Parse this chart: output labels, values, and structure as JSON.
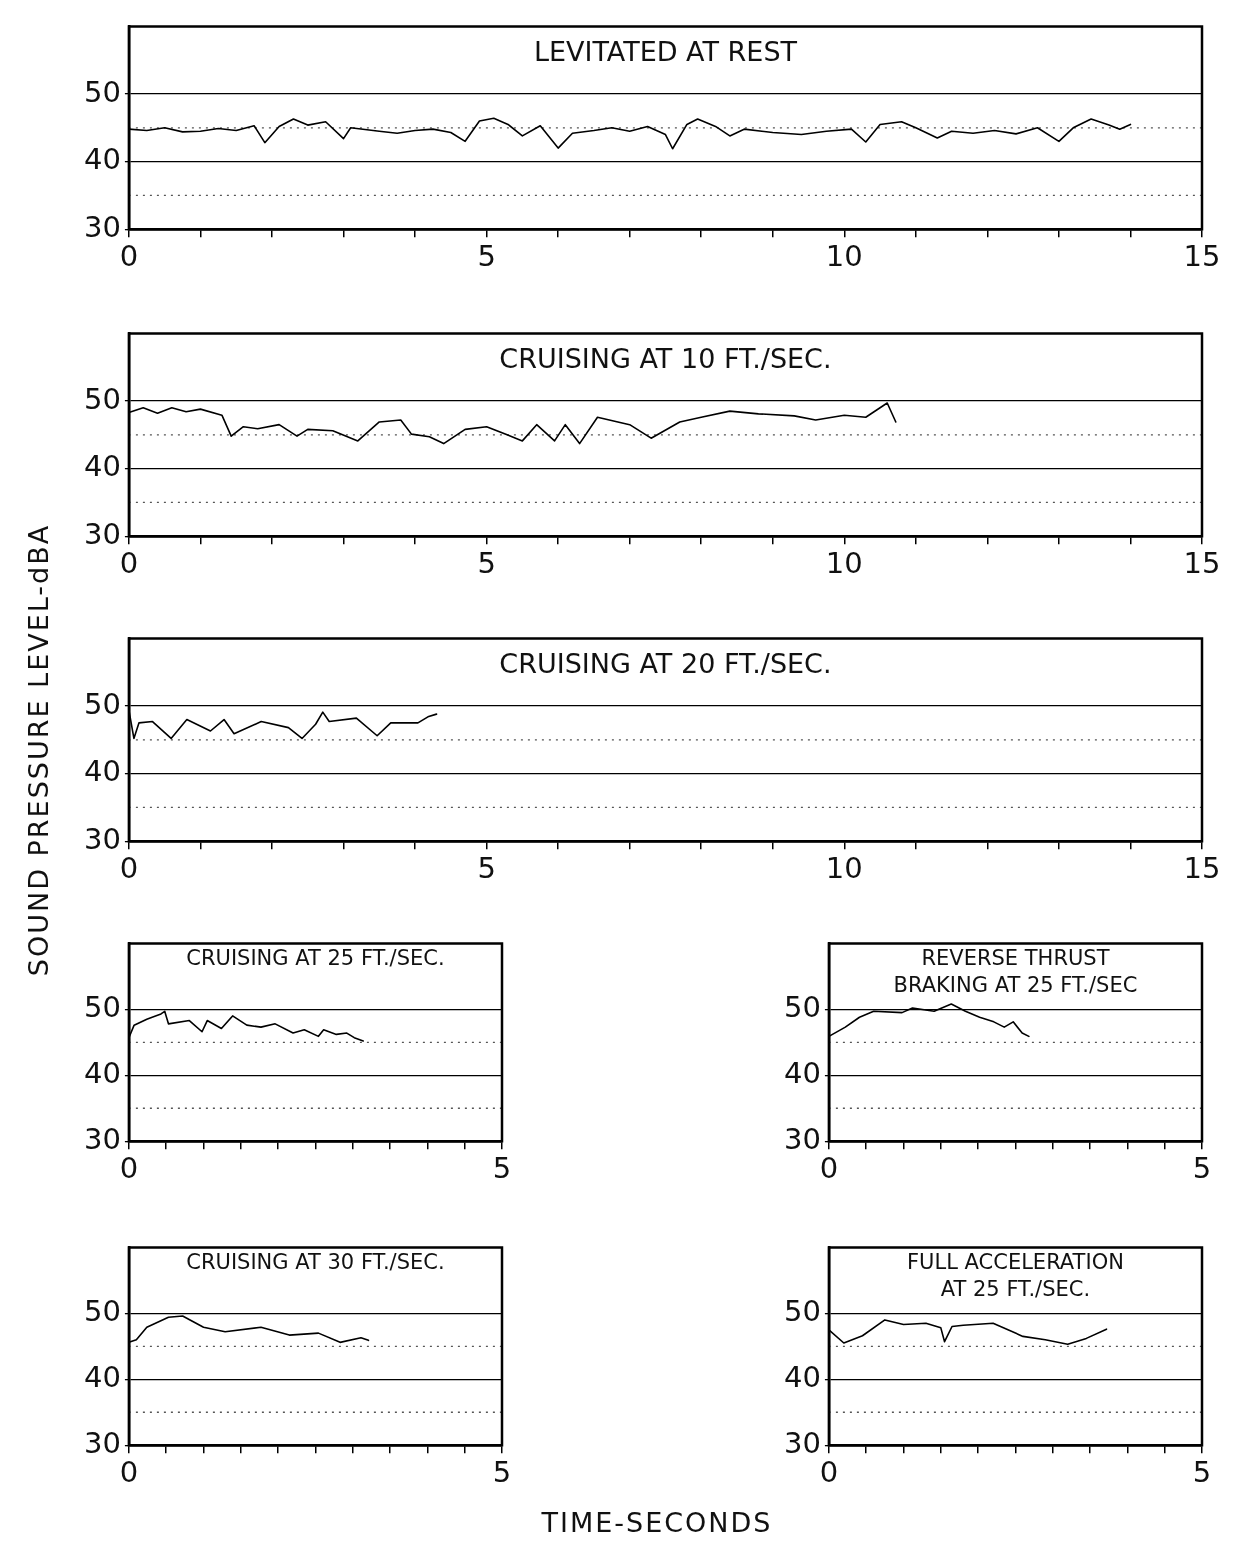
{
  "chart_data": [
    {
      "type": "line",
      "title": "LEVITATED AT REST",
      "color": "#000000",
      "x": [
        0,
        0.25,
        0.5,
        0.75,
        1.0,
        1.25,
        1.5,
        1.75,
        1.9,
        2.1,
        2.3,
        2.5,
        2.75,
        3.0,
        3.1,
        3.5,
        3.75,
        4.0,
        4.25,
        4.5,
        4.7,
        4.9,
        5.1,
        5.3,
        5.5,
        5.75,
        6.0,
        6.2,
        6.5,
        6.75,
        7.0,
        7.25,
        7.5,
        7.6,
        7.8,
        7.95,
        8.2,
        8.4,
        8.6,
        9.0,
        9.4,
        9.75,
        10.1,
        10.3,
        10.5,
        10.8,
        11.0,
        11.3,
        11.5,
        11.8,
        12.1,
        12.4,
        12.7,
        13.0,
        13.2,
        13.45,
        13.7,
        13.85,
        14.0
      ],
      "values": [
        44.8,
        44.6,
        45.0,
        44.4,
        44.5,
        44.9,
        44.6,
        45.3,
        42.8,
        45.2,
        46.3,
        45.4,
        45.9,
        43.4,
        45.0,
        44.5,
        44.2,
        44.6,
        44.8,
        44.3,
        43.0,
        46.0,
        46.4,
        45.5,
        43.8,
        45.3,
        42.0,
        44.2,
        44.6,
        45.0,
        44.5,
        45.2,
        44.0,
        41.9,
        45.5,
        46.3,
        45.2,
        43.8,
        44.8,
        44.3,
        44.0,
        44.5,
        44.8,
        42.9,
        45.5,
        45.9,
        45.0,
        43.5,
        44.5,
        44.2,
        44.6,
        44.1,
        45.0,
        43.0,
        45.0,
        46.3,
        45.4,
        44.8,
        45.5
      ],
      "xlim": [
        0,
        15
      ],
      "xticks": [
        0,
        {
          "value": 1,
          "label": null
        },
        {
          "value": 2,
          "label": null
        },
        {
          "value": 3,
          "label": null
        },
        {
          "value": 4,
          "label": null
        },
        5,
        {
          "value": 6,
          "label": null
        },
        {
          "value": 7,
          "label": null
        },
        {
          "value": 8,
          "label": null
        },
        {
          "value": 9,
          "label": null
        },
        10,
        {
          "value": 11,
          "label": null
        },
        {
          "value": 12,
          "label": null
        },
        {
          "value": 13,
          "label": null
        },
        {
          "value": 14,
          "label": null
        },
        15
      ],
      "ylim": [
        30,
        60
      ],
      "yticks": [
        30,
        40,
        50
      ],
      "grid": "y",
      "ref_lines": [
        {
          "axis": "y",
          "value": 35,
          "line_style": "dotted",
          "color": "#555555"
        },
        {
          "axis": "y",
          "value": 45,
          "line_style": "dotted",
          "color": "#555555"
        }
      ]
    },
    {
      "type": "line",
      "title": "CRUISING AT 10 FT./SEC.",
      "color": "#000000",
      "x": [
        0,
        0.2,
        0.4,
        0.6,
        0.8,
        1.0,
        1.3,
        1.43,
        1.6,
        1.8,
        2.1,
        2.35,
        2.5,
        2.85,
        3.2,
        3.5,
        3.8,
        3.95,
        4.2,
        4.4,
        4.7,
        5.0,
        5.5,
        5.7,
        5.95,
        6.1,
        6.3,
        6.55,
        7.0,
        7.3,
        7.7,
        8.0,
        8.4,
        8.8,
        9.3,
        9.6,
        10.0,
        10.3,
        10.6,
        10.72
      ],
      "values": [
        48.3,
        49.0,
        48.2,
        49.0,
        48.4,
        48.8,
        47.9,
        44.8,
        46.2,
        45.9,
        46.5,
        44.8,
        45.8,
        45.6,
        44.1,
        46.9,
        47.2,
        45.1,
        44.7,
        43.7,
        45.8,
        46.2,
        44.1,
        46.5,
        44.1,
        46.5,
        43.7,
        47.6,
        46.5,
        44.5,
        46.9,
        47.6,
        48.5,
        48.1,
        47.8,
        47.2,
        47.9,
        47.6,
        49.7,
        46.9
      ],
      "xlim": [
        0,
        15
      ],
      "xticks": [
        0,
        {
          "value": 1,
          "label": null
        },
        {
          "value": 2,
          "label": null
        },
        {
          "value": 3,
          "label": null
        },
        {
          "value": 4,
          "label": null
        },
        5,
        {
          "value": 6,
          "label": null
        },
        {
          "value": 7,
          "label": null
        },
        {
          "value": 8,
          "label": null
        },
        {
          "value": 9,
          "label": null
        },
        10,
        {
          "value": 11,
          "label": null
        },
        {
          "value": 12,
          "label": null
        },
        {
          "value": 13,
          "label": null
        },
        {
          "value": 14,
          "label": null
        },
        15
      ],
      "ylim": [
        30,
        60
      ],
      "yticks": [
        30,
        40,
        50
      ],
      "grid": "y",
      "ref_lines": [
        {
          "axis": "y",
          "value": 35,
          "line_style": "dotted",
          "color": "#555555"
        },
        {
          "axis": "y",
          "value": 45,
          "line_style": "dotted",
          "color": "#555555"
        }
      ]
    },
    {
      "type": "line",
      "title": "CRUISING AT 20 FT./SEC.",
      "ylabel": "SOUND PRESSURE LEVEL-dBA",
      "color": "#000000",
      "x": [
        0,
        0.07,
        0.14,
        0.33,
        0.59,
        0.81,
        1.14,
        1.33,
        1.47,
        1.85,
        2.23,
        2.42,
        2.61,
        2.71,
        2.8,
        3.18,
        3.47,
        3.66,
        4.04,
        4.18,
        4.3
      ],
      "values": [
        49.4,
        45.2,
        47.5,
        47.7,
        45.2,
        48.0,
        46.3,
        48.0,
        45.9,
        47.7,
        46.8,
        45.2,
        47.3,
        49.1,
        47.7,
        48.2,
        45.6,
        47.5,
        47.5,
        48.4,
        48.8
      ],
      "xlim": [
        0,
        15
      ],
      "xticks": [
        0,
        {
          "value": 1,
          "label": null
        },
        {
          "value": 2,
          "label": null
        },
        {
          "value": 3,
          "label": null
        },
        {
          "value": 4,
          "label": null
        },
        5,
        {
          "value": 6,
          "label": null
        },
        {
          "value": 7,
          "label": null
        },
        {
          "value": 8,
          "label": null
        },
        {
          "value": 9,
          "label": null
        },
        10,
        {
          "value": 11,
          "label": null
        },
        {
          "value": 12,
          "label": null
        },
        {
          "value": 13,
          "label": null
        },
        {
          "value": 14,
          "label": null
        },
        15
      ],
      "ylim": [
        30,
        60
      ],
      "yticks": [
        30,
        40,
        50
      ],
      "grid": "y",
      "ref_lines": [
        {
          "axis": "y",
          "value": 35,
          "line_style": "dotted",
          "color": "#555555"
        },
        {
          "axis": "y",
          "value": 45,
          "line_style": "dotted",
          "color": "#555555"
        }
      ]
    },
    {
      "type": "line",
      "title": "CRUISING AT 25 FT./SEC.",
      "color": "#000000",
      "x": [
        0,
        0.07,
        0.24,
        0.43,
        0.48,
        0.53,
        0.81,
        0.98,
        1.05,
        1.24,
        1.39,
        1.58,
        1.77,
        1.96,
        2.2,
        2.35,
        2.54,
        2.61,
        2.78,
        2.92,
        3.02,
        3.14
      ],
      "values": [
        45.7,
        47.6,
        48.5,
        49.3,
        49.7,
        47.8,
        48.3,
        46.6,
        48.3,
        47.1,
        49.0,
        47.6,
        47.3,
        47.8,
        46.4,
        46.9,
        45.9,
        46.9,
        46.2,
        46.4,
        45.7,
        45.2
      ],
      "xlim": [
        0,
        5
      ],
      "xticks": [
        0,
        {
          "value": 0.5,
          "label": null
        },
        {
          "value": 1,
          "label": null
        },
        {
          "value": 1.5,
          "label": null
        },
        {
          "value": 2,
          "label": null
        },
        {
          "value": 2.5,
          "label": null
        },
        {
          "value": 3,
          "label": null
        },
        {
          "value": 3.5,
          "label": null
        },
        {
          "value": 4,
          "label": null
        },
        {
          "value": 4.5,
          "label": null
        },
        5
      ],
      "ylim": [
        30,
        60
      ],
      "yticks": [
        30,
        40,
        50
      ],
      "grid": "y",
      "ref_lines": [
        {
          "axis": "y",
          "value": 35,
          "line_style": "dotted",
          "color": "#555555"
        },
        {
          "axis": "y",
          "value": 45,
          "line_style": "dotted",
          "color": "#555555"
        }
      ]
    },
    {
      "type": "line",
      "title": "REVERSE THRUST\nBRAKING AT 25 FT./SEC",
      "color": "#000000",
      "x": [
        0,
        0.22,
        0.41,
        0.6,
        0.98,
        1.12,
        1.41,
        1.64,
        1.83,
        2.02,
        2.21,
        2.35,
        2.47,
        2.59,
        2.68
      ],
      "values": [
        45.9,
        47.3,
        48.8,
        49.7,
        49.5,
        50.2,
        49.7,
        50.8,
        49.7,
        48.8,
        48.1,
        47.3,
        48.1,
        46.4,
        45.9
      ],
      "xlim": [
        0,
        5
      ],
      "xticks": [
        0,
        {
          "value": 0.5,
          "label": null
        },
        {
          "value": 1,
          "label": null
        },
        {
          "value": 1.5,
          "label": null
        },
        {
          "value": 2,
          "label": null
        },
        {
          "value": 2.5,
          "label": null
        },
        {
          "value": 3,
          "label": null
        },
        {
          "value": 3.5,
          "label": null
        },
        {
          "value": 4,
          "label": null
        },
        {
          "value": 4.5,
          "label": null
        },
        5
      ],
      "ylim": [
        30,
        60
      ],
      "yticks": [
        30,
        40,
        50
      ],
      "grid": "y",
      "ref_lines": [
        {
          "axis": "y",
          "value": 35,
          "line_style": "dotted",
          "color": "#555555"
        },
        {
          "axis": "y",
          "value": 45,
          "line_style": "dotted",
          "color": "#555555"
        }
      ]
    },
    {
      "type": "line",
      "title": "CRUISING AT 30 FT./SEC.",
      "xlabel": "TIME-SECONDS",
      "color": "#000000",
      "x": [
        0,
        0.1,
        0.24,
        0.53,
        0.72,
        1.0,
        1.29,
        1.77,
        2.15,
        2.54,
        2.83,
        3.11,
        3.21
      ],
      "values": [
        45.6,
        46.0,
        47.9,
        49.4,
        49.6,
        47.9,
        47.2,
        47.9,
        46.7,
        47.0,
        45.6,
        46.3,
        45.9
      ],
      "xlim": [
        0,
        5
      ],
      "xticks": [
        0,
        {
          "value": 0.5,
          "label": null
        },
        {
          "value": 1,
          "label": null
        },
        {
          "value": 1.5,
          "label": null
        },
        {
          "value": 2,
          "label": null
        },
        {
          "value": 2.5,
          "label": null
        },
        {
          "value": 3,
          "label": null
        },
        {
          "value": 3.5,
          "label": null
        },
        {
          "value": 4,
          "label": null
        },
        {
          "value": 4.5,
          "label": null
        },
        5
      ],
      "ylim": [
        30,
        60
      ],
      "yticks": [
        30,
        40,
        50
      ],
      "grid": "y",
      "ref_lines": [
        {
          "axis": "y",
          "value": 35,
          "line_style": "dotted",
          "color": "#555555"
        },
        {
          "axis": "y",
          "value": 45,
          "line_style": "dotted",
          "color": "#555555"
        }
      ]
    },
    {
      "type": "line",
      "title": "FULL ACCELERATION\nAT 25 FT./SEC.",
      "color": "#000000",
      "x": [
        0,
        0.2,
        0.45,
        0.75,
        1.0,
        1.3,
        1.5,
        1.55,
        1.65,
        1.8,
        2.2,
        2.6,
        2.9,
        3.2,
        3.45,
        3.72
      ],
      "values": [
        47.5,
        45.5,
        46.6,
        49.0,
        48.3,
        48.5,
        47.8,
        45.7,
        48.0,
        48.2,
        48.5,
        46.5,
        46.0,
        45.3,
        46.2,
        47.6
      ],
      "xlim": [
        0,
        5
      ],
      "xticks": [
        0,
        {
          "value": 0.5,
          "label": null
        },
        {
          "value": 1,
          "label": null
        },
        {
          "value": 1.5,
          "label": null
        },
        {
          "value": 2,
          "label": null
        },
        {
          "value": 2.5,
          "label": null
        },
        {
          "value": 3,
          "label": null
        },
        {
          "value": 3.5,
          "label": null
        },
        {
          "value": 4,
          "label": null
        },
        {
          "value": 4.5,
          "label": null
        },
        5
      ],
      "ylim": [
        30,
        60
      ],
      "yticks": [
        30,
        40,
        50
      ],
      "grid": "y",
      "ref_lines": [
        {
          "axis": "y",
          "value": 35,
          "line_style": "dotted",
          "color": "#555555"
        },
        {
          "axis": "y",
          "value": 45,
          "line_style": "dotted",
          "color": "#555555"
        }
      ]
    }
  ]
}
